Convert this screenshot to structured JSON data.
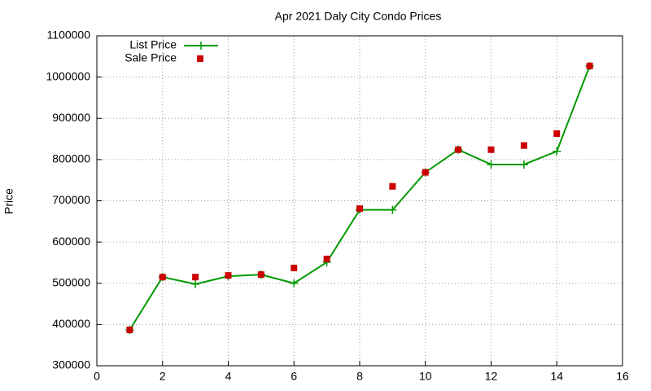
{
  "chart_data": {
    "type": "line",
    "title": "Apr 2021 Daly City Condo Prices",
    "y_label": "Price",
    "x": [
      1,
      2,
      3,
      4,
      5,
      6,
      7,
      8,
      9,
      10,
      11,
      12,
      13,
      14,
      15
    ],
    "series": [
      {
        "name": "List Price",
        "color": "#009900",
        "mode": "linespoints",
        "values": [
          387000,
          515000,
          498000,
          517000,
          521000,
          500000,
          551000,
          678000,
          678000,
          769000,
          824000,
          788000,
          788000,
          820000,
          1027000
        ]
      },
      {
        "name": "Sale Price",
        "color": "#cc0000",
        "mode": "points",
        "values": [
          387000,
          515000,
          515000,
          519000,
          521000,
          537000,
          559000,
          681000,
          735000,
          769000,
          824000,
          824000,
          834000,
          863000,
          1027000
        ]
      }
    ],
    "xlim": [
      0,
      16
    ],
    "xticks": [
      0,
      2,
      4,
      6,
      8,
      10,
      12,
      14,
      16
    ],
    "ylim": [
      300000,
      1100000
    ],
    "yticks": [
      300000,
      400000,
      500000,
      600000,
      700000,
      800000,
      900000,
      1000000,
      1100000
    ],
    "grid": true,
    "legend": "top-left"
  }
}
